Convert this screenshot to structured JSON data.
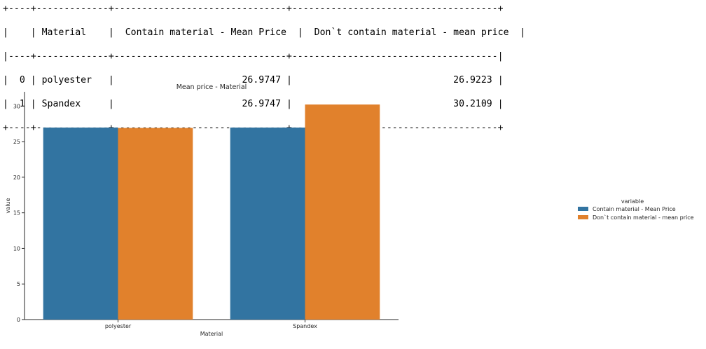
{
  "table": {
    "headers": [
      "",
      "Material",
      "Contain material - Mean Price",
      "Don`t contain material - mean price"
    ],
    "rows": [
      [
        "0",
        "polyester",
        "26.9747",
        "26.9223"
      ],
      [
        "1",
        "Spandex",
        "26.9747",
        "30.2109"
      ]
    ]
  },
  "chart_data": {
    "type": "bar",
    "title": "Mean price - Material",
    "xlabel": "Material",
    "ylabel": "value",
    "categories": [
      "polyester",
      "Spandex"
    ],
    "series": [
      {
        "name": "Contain material - Mean Price",
        "values": [
          26.9747,
          26.9747
        ],
        "color": "#3274a1"
      },
      {
        "name": "Don`t contain material - mean price",
        "values": [
          26.9223,
          30.2109
        ],
        "color": "#e1812c"
      }
    ],
    "ylim": [
      0,
      32
    ],
    "yticks": [
      0,
      5,
      10,
      15,
      20,
      25,
      30
    ],
    "grid": false,
    "legend_title": "variable",
    "legend_placement": "right"
  }
}
